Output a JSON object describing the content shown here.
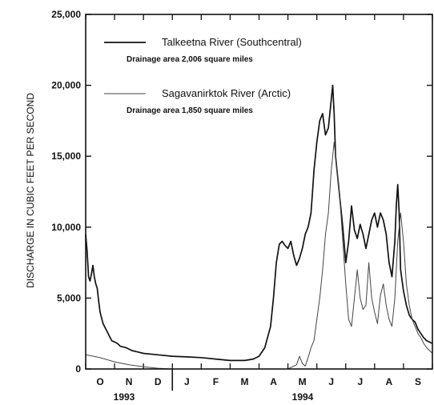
{
  "chart_data": {
    "type": "line",
    "ylabel": "DISCHARGE IN CUBIC FEET PER SECOND",
    "ylim": [
      0,
      25000
    ],
    "yticks": [
      0,
      5000,
      10000,
      15000,
      20000,
      25000
    ],
    "ytick_labels": [
      "0",
      "5,000",
      "10,000",
      "15,000",
      "20,000",
      "25,000"
    ],
    "month_labels": [
      "O",
      "N",
      "D",
      "J",
      "F",
      "M",
      "A",
      "M",
      "J",
      "J",
      "A",
      "S"
    ],
    "year_labels": [
      "1993",
      "1994"
    ],
    "xlim_months": [
      0,
      12
    ],
    "series": [
      {
        "name": "Talkeetna River (Southcentral)",
        "note": "Drainage area 2,006 square miles",
        "color": "#111111",
        "style": "solid",
        "x": [
          0.0,
          0.05,
          0.1,
          0.15,
          0.2,
          0.25,
          0.3,
          0.35,
          0.4,
          0.45,
          0.5,
          0.55,
          0.6,
          0.7,
          0.8,
          0.9,
          1.0,
          1.1,
          1.2,
          1.4,
          1.6,
          1.8,
          2.0,
          2.5,
          3.0,
          3.5,
          4.0,
          4.5,
          5.0,
          5.5,
          5.8,
          6.0,
          6.2,
          6.4,
          6.5,
          6.6,
          6.7,
          6.8,
          6.9,
          7.0,
          7.1,
          7.2,
          7.3,
          7.4,
          7.5,
          7.6,
          7.7,
          7.8,
          7.85,
          7.9,
          8.0,
          8.1,
          8.2,
          8.3,
          8.4,
          8.5,
          8.55,
          8.6,
          8.65,
          8.7,
          8.8,
          8.9,
          9.0,
          9.1,
          9.2,
          9.3,
          9.4,
          9.5,
          9.6,
          9.7,
          9.8,
          9.9,
          10.0,
          10.1,
          10.2,
          10.3,
          10.4,
          10.5,
          10.6,
          10.7,
          10.75,
          10.8,
          10.85,
          10.9,
          11.0,
          11.1,
          11.2,
          11.3,
          11.4,
          11.5,
          11.6,
          11.7,
          11.8,
          12.0
        ],
        "y": [
          9500,
          8300,
          6500,
          6200,
          6700,
          7300,
          6500,
          6000,
          5700,
          4800,
          4000,
          3600,
          3200,
          2800,
          2400,
          2000,
          1900,
          1800,
          1600,
          1500,
          1300,
          1200,
          1100,
          1000,
          900,
          850,
          800,
          700,
          600,
          600,
          700,
          900,
          1500,
          3000,
          5000,
          7500,
          8800,
          9000,
          8700,
          8500,
          9000,
          8000,
          7300,
          7800,
          8500,
          9500,
          10000,
          11000,
          12500,
          14000,
          16000,
          17500,
          18000,
          16500,
          17000,
          19000,
          20000,
          18000,
          15000,
          14000,
          12000,
          10000,
          7500,
          9000,
          11500,
          9800,
          9200,
          10200,
          9500,
          8500,
          9500,
          10500,
          11000,
          10000,
          11000,
          10500,
          9500,
          7500,
          6500,
          9000,
          11500,
          13000,
          11000,
          7000,
          5500,
          4500,
          3800,
          3500,
          3300,
          2800,
          2500,
          2200,
          2000,
          1800
        ]
      },
      {
        "name": "Sagavanirktok River (Arctic)",
        "note": "Drainage area 1,850 square miles",
        "color": "#444444",
        "style": "thin",
        "x": [
          0.0,
          0.5,
          1.0,
          1.5,
          2.0,
          2.5,
          3.0,
          3.5,
          4.0,
          5.0,
          6.0,
          7.0,
          7.3,
          7.4,
          7.5,
          7.6,
          7.7,
          7.8,
          7.9,
          8.0,
          8.1,
          8.2,
          8.3,
          8.4,
          8.45,
          8.5,
          8.6,
          8.7,
          8.8,
          8.9,
          9.0,
          9.1,
          9.2,
          9.3,
          9.4,
          9.5,
          9.6,
          9.7,
          9.8,
          9.9,
          10.0,
          10.1,
          10.2,
          10.3,
          10.4,
          10.5,
          10.6,
          10.7,
          10.8,
          10.9,
          11.0,
          11.1,
          11.2,
          11.3,
          11.4,
          11.5,
          11.6,
          11.7,
          11.8,
          12.0
        ],
        "y": [
          1000,
          800,
          500,
          300,
          150,
          50,
          0,
          0,
          0,
          0,
          0,
          0,
          300,
          900,
          400,
          200,
          800,
          1500,
          2000,
          3500,
          5000,
          7000,
          9500,
          11000,
          12500,
          14000,
          16000,
          14000,
          12000,
          9000,
          6000,
          3500,
          3000,
          5000,
          7000,
          5000,
          4200,
          4500,
          7500,
          5000,
          4000,
          3200,
          5200,
          6000,
          4500,
          3500,
          3000,
          5000,
          9000,
          11000,
          9000,
          6000,
          4500,
          3500,
          3000,
          2500,
          2200,
          1800,
          1500,
          1100
        ]
      }
    ]
  }
}
